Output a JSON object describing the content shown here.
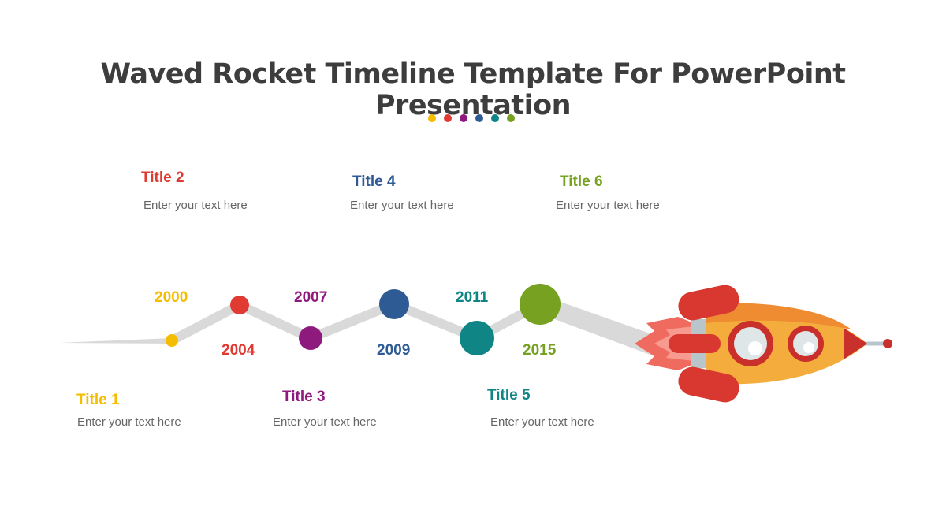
{
  "slide_title": "Waved Rocket Timeline Template For PowerPoint Presentation",
  "colors": {
    "yellow": "#f5bd00",
    "red": "#e03a33",
    "purple": "#8e1a7e",
    "blue": "#2f5b94",
    "teal": "#0f8585",
    "green": "#76a121"
  },
  "milestones": [
    {
      "year": "2000",
      "title": "Title 1",
      "text": "Enter your text here",
      "color": "#f5bd00"
    },
    {
      "year": "2004",
      "title": "Title 2",
      "text": "Enter your text here",
      "color": "#e03a33"
    },
    {
      "year": "2007",
      "title": "Title 3",
      "text": "Enter your text here",
      "color": "#8e1a7e"
    },
    {
      "year": "2009",
      "title": "Title 4",
      "text": "Enter your text here",
      "color": "#2f5b94"
    },
    {
      "year": "2011",
      "title": "Title 5",
      "text": "Enter your text here",
      "color": "#0f8585"
    },
    {
      "year": "2015",
      "title": "Title 6",
      "text": "Enter your text here",
      "color": "#76a121"
    }
  ],
  "icons": [
    "rocket-icon"
  ]
}
